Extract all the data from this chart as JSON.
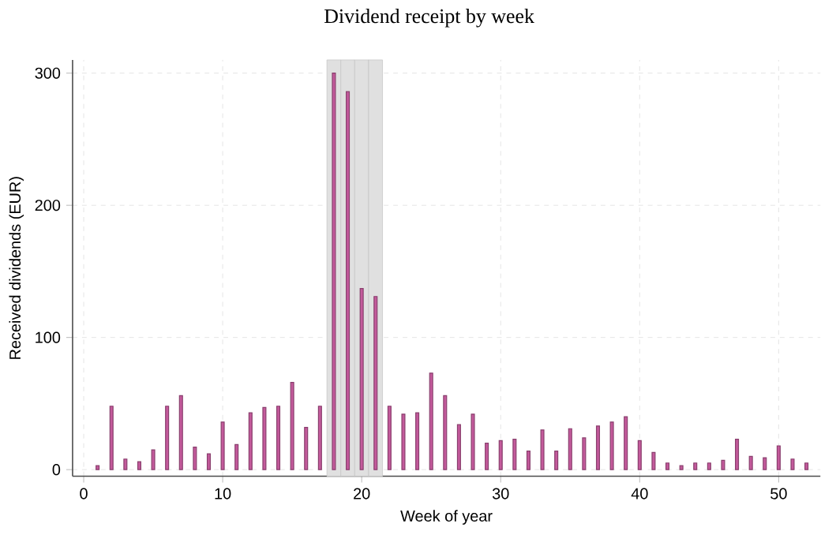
{
  "chart_data": {
    "type": "bar",
    "title": "Dividend receipt by week",
    "xlabel": "Week of year",
    "ylabel": "Received dividends (EUR)",
    "x": [
      1,
      2,
      3,
      4,
      5,
      6,
      7,
      8,
      9,
      10,
      11,
      12,
      13,
      14,
      15,
      16,
      17,
      18,
      19,
      20,
      21,
      22,
      23,
      24,
      25,
      26,
      27,
      28,
      29,
      30,
      31,
      32,
      33,
      34,
      35,
      36,
      37,
      38,
      39,
      40,
      41,
      42,
      43,
      44,
      45,
      46,
      47,
      48,
      49,
      50,
      51,
      52
    ],
    "values": [
      3,
      48,
      8,
      6,
      15,
      48,
      56,
      17,
      12,
      36,
      19,
      43,
      47,
      48,
      66,
      32,
      48,
      300,
      286,
      137,
      131,
      48,
      42,
      43,
      73,
      56,
      34,
      42,
      20,
      22,
      23,
      14,
      30,
      14,
      31,
      24,
      33,
      36,
      40,
      22,
      13,
      5,
      3,
      5,
      5,
      7,
      23,
      10,
      9,
      18,
      8,
      5
    ],
    "color": "#c45a9c",
    "xlim": [
      -0.8,
      53
    ],
    "ylim": [
      -5,
      310
    ],
    "xticks": [
      0,
      10,
      20,
      30,
      40,
      50
    ],
    "yticks": [
      0,
      100,
      200,
      300
    ],
    "bands": [
      {
        "axis": "x",
        "from": 17.5,
        "to": 18.5,
        "color": "#e0e0e0"
      },
      {
        "axis": "x",
        "from": 18.5,
        "to": 19.5,
        "color": "#e0e0e0"
      },
      {
        "axis": "x",
        "from": 19.5,
        "to": 20.5,
        "color": "#e0e0e0"
      },
      {
        "axis": "x",
        "from": 20.5,
        "to": 21.5,
        "color": "#e0e0e0"
      }
    ],
    "grid": true
  }
}
